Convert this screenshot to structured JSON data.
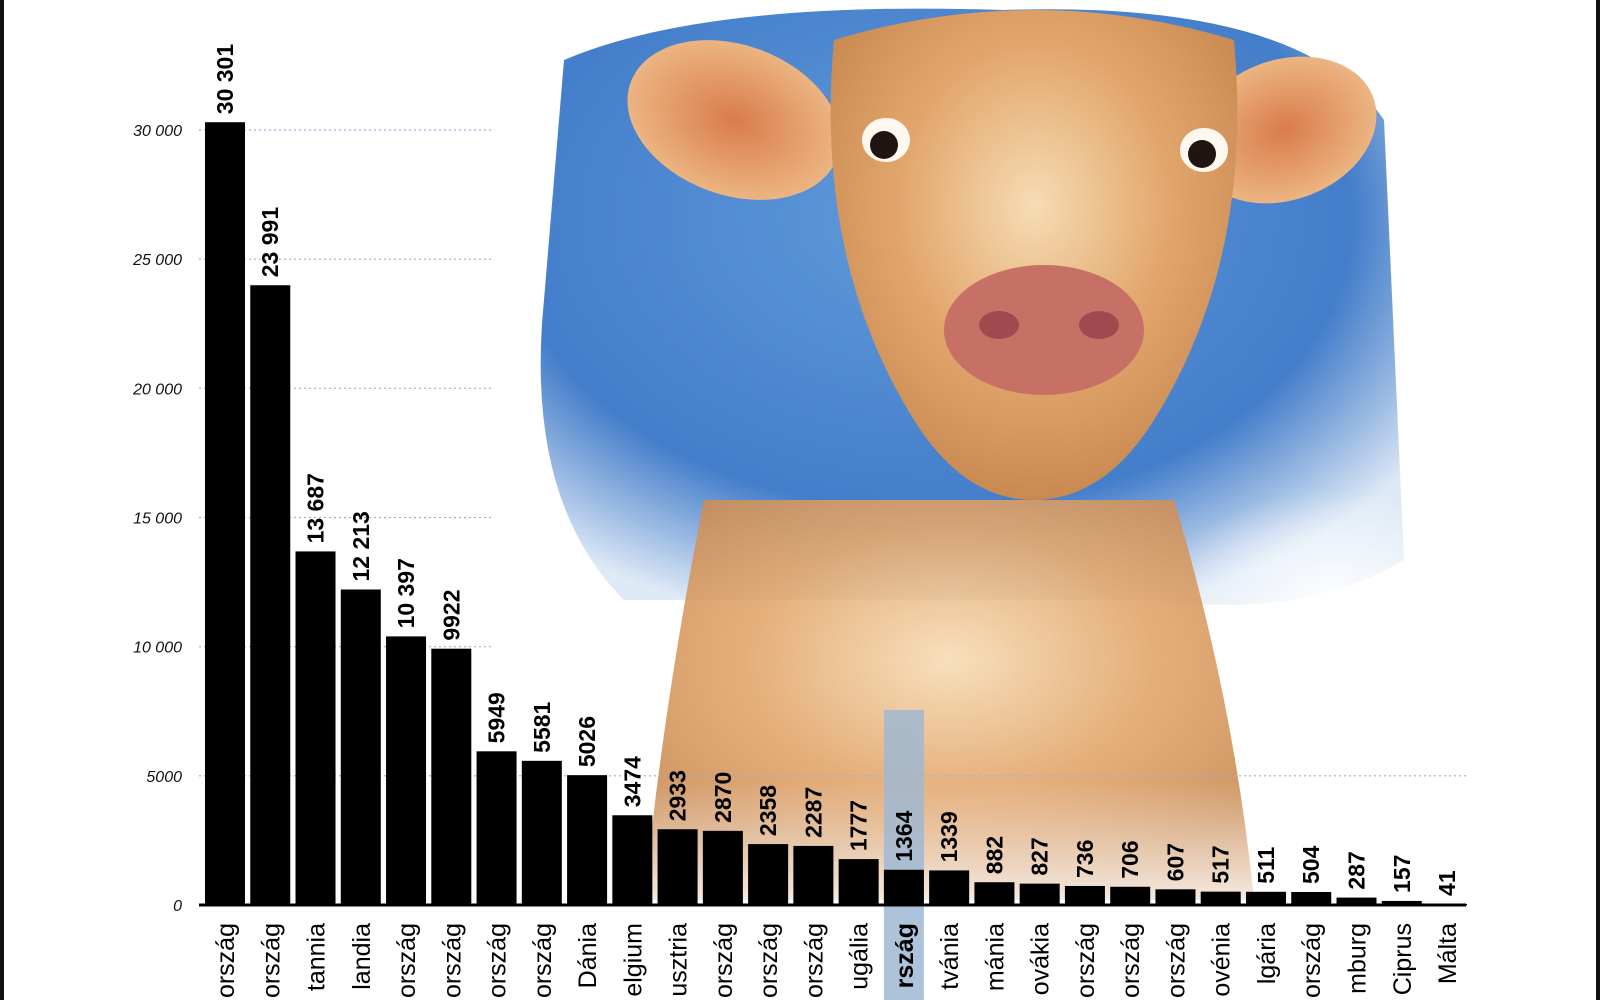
{
  "chart_data": {
    "type": "bar",
    "categories": [
      "ország",
      "ország",
      "tannia",
      "landia",
      "ország",
      "ország",
      "ország",
      "ország",
      "Dánia",
      "elgium",
      "usztria",
      "ország",
      "ország",
      "ország",
      "ugália",
      "rszág",
      "tvánia",
      "mánia",
      "ovákia",
      "ország",
      "ország",
      "ország",
      "ovénia",
      "lgária",
      "ország",
      "mburg",
      "Ciprus",
      "Málta"
    ],
    "values": [
      30301,
      23991,
      13687,
      12213,
      10397,
      9922,
      5949,
      5581,
      5026,
      3474,
      2933,
      2870,
      2358,
      2287,
      1777,
      1364,
      1339,
      882,
      827,
      736,
      706,
      607,
      517,
      511,
      504,
      287,
      157,
      41
    ],
    "value_labels": [
      "30 301",
      "23 991",
      "13 687",
      "12 213",
      "10 397",
      "9922",
      "5949",
      "5581",
      "5026",
      "3474",
      "2933",
      "2870",
      "2358",
      "2287",
      "1777",
      "1364",
      "1339",
      "882",
      "827",
      "736",
      "706",
      "607",
      "517",
      "511",
      "504",
      "287",
      "157",
      "41"
    ],
    "y_ticks": [
      0,
      5000,
      10000,
      15000,
      20000,
      25000,
      30000
    ],
    "y_tick_labels": [
      "0",
      "5000",
      "10 000",
      "15 000",
      "20 000",
      "25 000",
      "30 000"
    ],
    "ylim": [
      0,
      30000
    ],
    "grid": true,
    "grid_style": "dotted",
    "highlight_index": 15,
    "colors": {
      "bar": "#000000",
      "highlight_bar": "#9fb8d2",
      "grid": "#8fb4d9",
      "axis": "#000000"
    },
    "background_image": "cow-photo"
  }
}
